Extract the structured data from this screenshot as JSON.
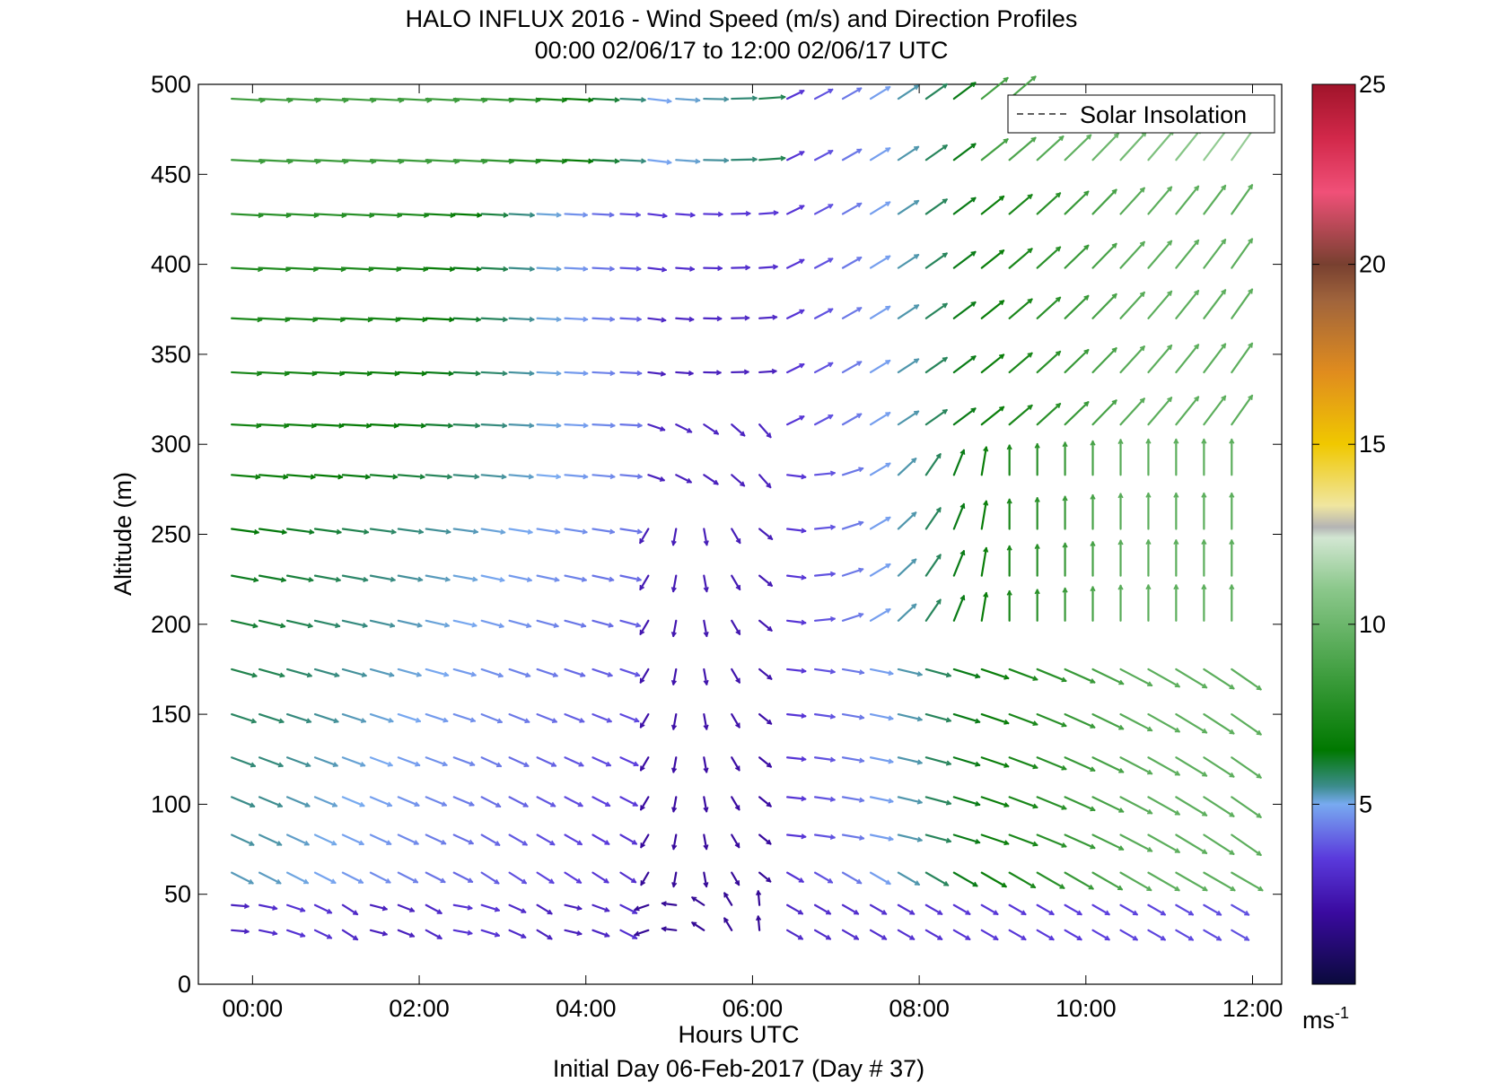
{
  "chart_data": {
    "type": "vector-field",
    "title": "HALO INFLUX 2016 - Wind Speed (m/s) and Direction Profiles",
    "subtitle": "00:00 02/06/17 to 12:00 02/06/17  UTC",
    "xlabel": "Hours UTC",
    "ylabel": "Altitude (m)",
    "footer": "Initial Day 06-Feb-2017 (Day # 37)",
    "xlim": [
      -0.65,
      12.35
    ],
    "ylim": [
      0,
      500
    ],
    "x_ticks": [
      0,
      2,
      4,
      6,
      8,
      10,
      12
    ],
    "x_tick_labels": [
      "00:00",
      "02:00",
      "04:00",
      "06:00",
      "08:00",
      "10:00",
      "12:00"
    ],
    "y_ticks": [
      0,
      50,
      100,
      150,
      200,
      250,
      300,
      350,
      400,
      450,
      500
    ],
    "y_tick_labels": [
      "0",
      "50",
      "100",
      "150",
      "200",
      "250",
      "300",
      "350",
      "400",
      "450",
      "500"
    ],
    "legend": {
      "label": "Solar Insolation",
      "position": "top-right",
      "line_style": "dashed"
    },
    "colorbar": {
      "min": 0,
      "max": 25,
      "ticks": [
        5,
        10,
        15,
        20,
        25
      ],
      "tick_labels": [
        "5",
        "10",
        "15",
        "20",
        "25"
      ],
      "unit": "ms",
      "unit_exponent": "-1"
    },
    "colormap_stops": [
      [
        0,
        "#0a0a3c"
      ],
      [
        2,
        "#3a0aa0"
      ],
      [
        3.5,
        "#5a3adc"
      ],
      [
        5,
        "#78aaf0"
      ],
      [
        5.5,
        "#3c8c8c"
      ],
      [
        6.5,
        "#007800"
      ],
      [
        8.5,
        "#3c9c3c"
      ],
      [
        11,
        "#8cc88c"
      ],
      [
        12.4,
        "#d2e6d2"
      ],
      [
        12.7,
        "#b4b4b4"
      ],
      [
        13.3,
        "#f0e6a0"
      ],
      [
        15,
        "#f0c800"
      ],
      [
        17,
        "#e08c1e"
      ],
      [
        19,
        "#a0643c"
      ],
      [
        20,
        "#784030"
      ],
      [
        22,
        "#f05078"
      ],
      [
        23.5,
        "#d2284a"
      ],
      [
        25,
        "#a0142a"
      ]
    ],
    "times": [
      -0.25,
      0.083,
      0.417,
      0.75,
      1.083,
      1.417,
      1.75,
      2.083,
      2.417,
      2.75,
      3.083,
      3.417,
      3.75,
      4.083,
      4.417,
      4.75,
      5.083,
      5.417,
      5.75,
      6.083,
      6.417,
      6.75,
      7.083,
      7.417,
      7.75,
      8.083,
      8.417,
      8.75,
      9.083,
      9.417,
      9.75,
      10.083,
      10.417,
      10.75,
      11.083,
      11.417,
      11.75
    ],
    "altitudes": [
      30,
      44,
      62,
      83,
      104,
      126,
      150,
      175,
      202,
      227,
      253,
      283,
      311,
      340,
      370,
      398,
      428,
      458,
      492
    ],
    "wind_field_note": "Arrows show wind direction; length and colour show speed (m/s)."
  }
}
